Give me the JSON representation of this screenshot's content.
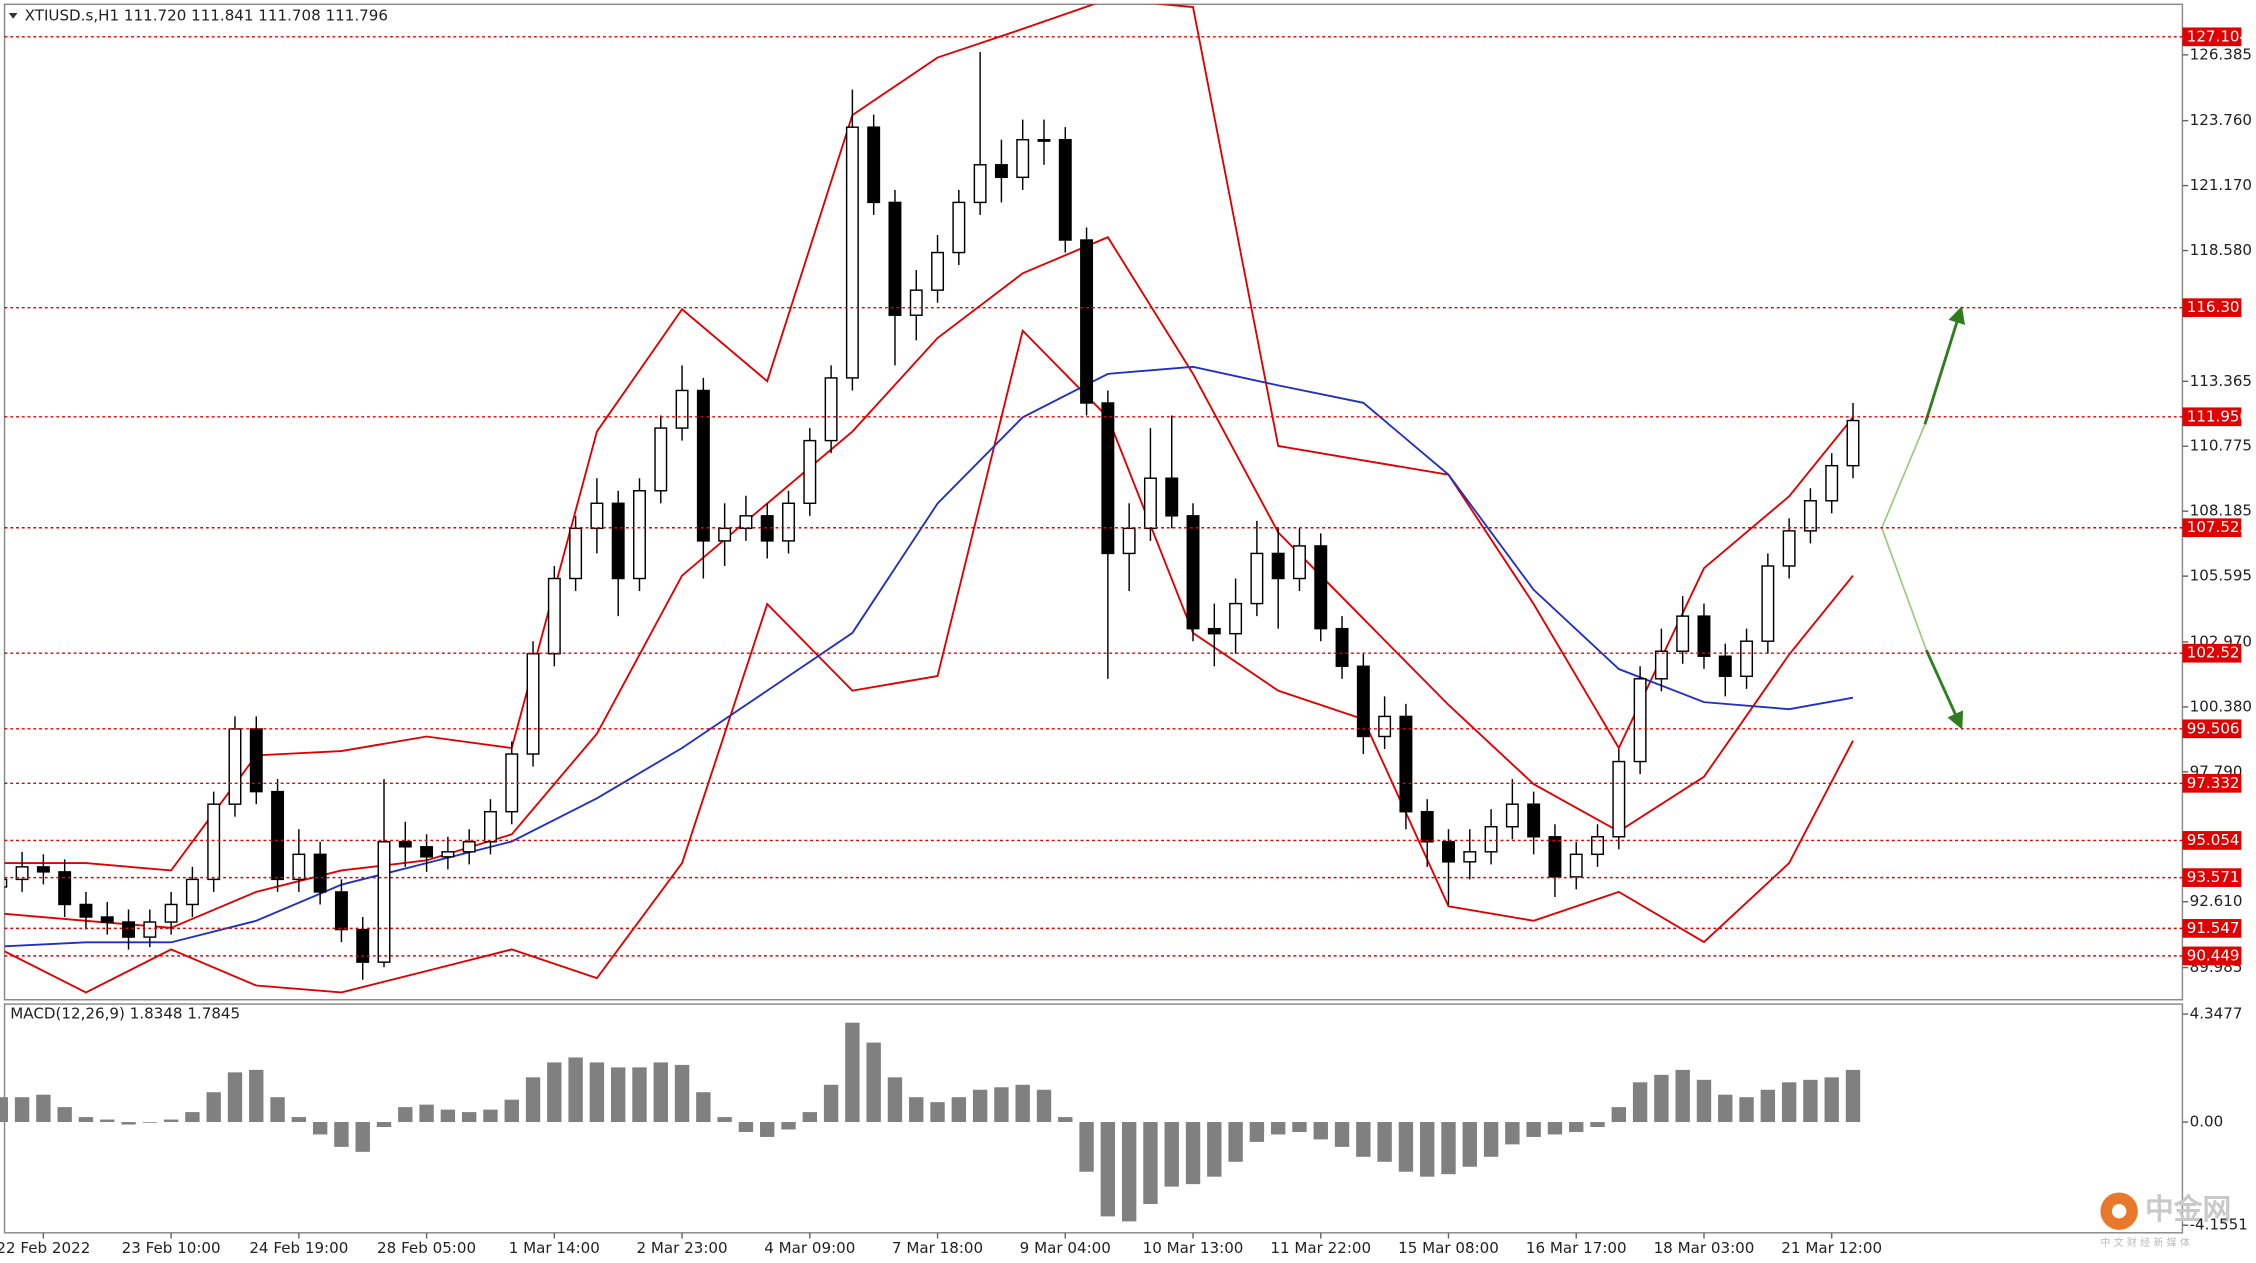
{
  "chart_data": [
    {
      "type": "candlestick",
      "title": "XTIUSD.s,H1  111.720 111.841 111.708 111.796",
      "categories": [
        null,
        null,
        "22 Feb 2022",
        null,
        null,
        null,
        null,
        null,
        "23 Feb 10:00",
        null,
        null,
        null,
        null,
        null,
        "24 Feb 19:00",
        null,
        null,
        null,
        null,
        null,
        "28 Feb 05:00",
        null,
        null,
        null,
        null,
        null,
        "1 Mar 14:00",
        null,
        null,
        null,
        null,
        null,
        "2 Mar 23:00",
        null,
        null,
        null,
        null,
        null,
        "4 Mar 09:00",
        null,
        null,
        null,
        null,
        null,
        "7 Mar 18:00",
        null,
        null,
        null,
        null,
        null,
        "9 Mar 04:00",
        null,
        null,
        null,
        null,
        null,
        "10 Mar 13:00",
        null,
        null,
        null,
        null,
        null,
        "11 Mar 22:00",
        null,
        null,
        null,
        null,
        null,
        "15 Mar 08:00",
        null,
        null,
        null,
        null,
        null,
        "16 Mar 17:00",
        null,
        null,
        null,
        null,
        null,
        "18 Mar 03:00",
        null,
        null,
        null,
        null,
        null,
        "21 Mar 12:00",
        null
      ],
      "ohlc": [
        [
          93.2,
          94.0,
          92.7,
          93.5
        ],
        [
          93.5,
          94.6,
          93.0,
          94.0
        ],
        [
          94.0,
          94.5,
          93.3,
          93.8
        ],
        [
          93.8,
          94.3,
          92.0,
          92.5
        ],
        [
          92.5,
          93.0,
          91.5,
          92.0
        ],
        [
          92.0,
          92.6,
          91.3,
          91.8
        ],
        [
          91.8,
          92.3,
          90.7,
          91.2
        ],
        [
          91.2,
          92.3,
          90.8,
          91.8
        ],
        [
          91.8,
          93.0,
          91.3,
          92.5
        ],
        [
          92.5,
          94.0,
          92.0,
          93.5
        ],
        [
          93.5,
          97.0,
          93.0,
          96.5
        ],
        [
          96.5,
          100.0,
          96.0,
          99.5
        ],
        [
          99.5,
          100.0,
          96.5,
          97.0
        ],
        [
          97.0,
          97.5,
          93.0,
          93.5
        ],
        [
          93.5,
          95.5,
          93.0,
          94.5
        ],
        [
          94.5,
          95.0,
          92.5,
          93.0
        ],
        [
          93.0,
          93.5,
          91.0,
          91.5
        ],
        [
          91.5,
          92.0,
          89.5,
          90.2
        ],
        [
          90.2,
          97.5,
          90.0,
          95.0
        ],
        [
          95.0,
          95.8,
          94.0,
          94.8
        ],
        [
          94.8,
          95.3,
          93.8,
          94.4
        ],
        [
          94.4,
          95.2,
          93.9,
          94.6
        ],
        [
          94.6,
          95.5,
          94.1,
          95.0
        ],
        [
          95.0,
          96.7,
          94.5,
          96.2
        ],
        [
          96.2,
          99.0,
          95.7,
          98.5
        ],
        [
          98.5,
          103.0,
          98.0,
          102.5
        ],
        [
          102.5,
          106.0,
          102.0,
          105.5
        ],
        [
          105.5,
          108.0,
          105.0,
          107.5
        ],
        [
          107.5,
          109.5,
          106.5,
          108.5
        ],
        [
          108.5,
          109.0,
          104.0,
          105.5
        ],
        [
          105.5,
          109.5,
          105.0,
          109.0
        ],
        [
          109.0,
          112.0,
          108.5,
          111.5
        ],
        [
          111.5,
          114.0,
          111.0,
          113.0
        ],
        [
          113.0,
          113.5,
          105.5,
          107.0
        ],
        [
          107.0,
          108.5,
          106.0,
          107.5
        ],
        [
          107.5,
          108.8,
          107.0,
          108.0
        ],
        [
          108.0,
          108.5,
          106.3,
          107.0
        ],
        [
          107.0,
          109.0,
          106.5,
          108.5
        ],
        [
          108.5,
          111.5,
          108.0,
          111.0
        ],
        [
          111.0,
          114.0,
          110.5,
          113.5
        ],
        [
          113.5,
          125.0,
          113.0,
          123.5
        ],
        [
          123.5,
          124.0,
          120.0,
          120.5
        ],
        [
          120.5,
          121.0,
          114.0,
          116.0
        ],
        [
          116.0,
          117.8,
          115.0,
          117.0
        ],
        [
          117.0,
          119.2,
          116.5,
          118.5
        ],
        [
          118.5,
          121.0,
          118.0,
          120.5
        ],
        [
          120.5,
          126.5,
          120.0,
          122.0
        ],
        [
          122.0,
          123.0,
          120.5,
          121.5
        ],
        [
          121.5,
          123.8,
          121.0,
          123.0
        ],
        [
          123.0,
          123.8,
          122.0,
          123.0
        ],
        [
          123.0,
          123.5,
          118.5,
          119.0
        ],
        [
          119.0,
          119.5,
          112.0,
          112.5
        ],
        [
          112.5,
          113.0,
          101.5,
          106.5
        ],
        [
          106.5,
          108.5,
          105.0,
          107.5
        ],
        [
          107.5,
          111.5,
          107.0,
          109.5
        ],
        [
          109.5,
          112.0,
          107.5,
          108.0
        ],
        [
          108.0,
          108.5,
          103.0,
          103.5
        ],
        [
          103.5,
          104.5,
          102.0,
          103.3
        ],
        [
          103.3,
          105.5,
          102.5,
          104.5
        ],
        [
          104.5,
          107.8,
          104.0,
          106.5
        ],
        [
          106.5,
          107.5,
          103.5,
          105.5
        ],
        [
          105.5,
          107.5,
          105.0,
          106.8
        ],
        [
          106.8,
          107.3,
          103.0,
          103.5
        ],
        [
          103.5,
          104.0,
          101.5,
          102.0
        ],
        [
          102.0,
          102.5,
          98.5,
          99.2
        ],
        [
          99.2,
          100.8,
          98.7,
          100.0
        ],
        [
          100.0,
          100.5,
          95.5,
          96.2
        ],
        [
          96.2,
          96.7,
          94.0,
          95.0
        ],
        [
          95.0,
          95.5,
          92.5,
          94.2
        ],
        [
          94.2,
          95.5,
          93.5,
          94.6
        ],
        [
          94.6,
          96.3,
          94.1,
          95.6
        ],
        [
          95.6,
          97.5,
          95.1,
          96.5
        ],
        [
          96.5,
          97.0,
          94.5,
          95.2
        ],
        [
          95.2,
          95.7,
          92.8,
          93.6
        ],
        [
          93.6,
          95.0,
          93.1,
          94.5
        ],
        [
          94.5,
          95.7,
          94.0,
          95.2
        ],
        [
          95.2,
          98.7,
          94.7,
          98.2
        ],
        [
          98.2,
          102.0,
          97.7,
          101.5
        ],
        [
          101.5,
          103.5,
          101.0,
          102.6
        ],
        [
          102.6,
          104.8,
          102.1,
          104.0
        ],
        [
          104.0,
          104.5,
          101.9,
          102.4
        ],
        [
          102.4,
          102.9,
          100.8,
          101.6
        ],
        [
          101.6,
          103.5,
          101.1,
          103.0
        ],
        [
          103.0,
          106.5,
          102.5,
          106.0
        ],
        [
          106.0,
          107.9,
          105.5,
          107.4
        ],
        [
          107.4,
          109.1,
          106.9,
          108.6
        ],
        [
          108.6,
          110.5,
          108.1,
          110.0
        ],
        [
          110.0,
          112.5,
          109.5,
          111.8
        ]
      ],
      "color_up": "#ffffff",
      "color_down": "#000000",
      "x": [
        0,
        4,
        8,
        12,
        16,
        20,
        24,
        28,
        32,
        36,
        40,
        44,
        48,
        52,
        56,
        60,
        64,
        68,
        72,
        76,
        80,
        84,
        87
      ],
      "series": [
        {
          "color": "#e00000",
          "values": [
            94.15,
            94.15,
            93.86,
            98.45,
            98.62,
            99.2,
            98.74,
            111.36,
            116.24,
            113.37,
            123.98,
            126.28,
            127.42,
            128.6,
            128.29,
            110.79,
            110.21,
            109.64,
            104.48,
            98.74,
            105.91,
            108.78,
            111.93
          ]
        },
        {
          "color": "#e00000",
          "values": [
            92.14,
            91.85,
            91.57,
            93.0,
            93.86,
            94.26,
            95.3,
            99.31,
            105.62,
            108.49,
            111.36,
            115.09,
            117.67,
            119.11,
            113.66,
            107.34,
            103.9,
            100.46,
            97.3,
            95.41,
            97.59,
            102.47,
            105.62
          ]
        },
        {
          "color": "#e00000",
          "values": [
            90.71,
            88.99,
            90.71,
            89.27,
            88.99,
            89.85,
            90.71,
            89.56,
            94.15,
            104.48,
            101.03,
            101.61,
            115.38,
            111.93,
            103.33,
            101.03,
            99.89,
            92.43,
            91.85,
            93.0,
            91.0,
            94.15,
            99.03
          ]
        },
        {
          "color": "#2030c0",
          "values": [
            90.82,
            90.99,
            90.99,
            91.85,
            93.29,
            94.15,
            95.01,
            96.73,
            98.74,
            101.03,
            103.33,
            108.49,
            111.93,
            113.66,
            113.94,
            113.2,
            112.51,
            109.64,
            105.05,
            101.89,
            100.57,
            100.29,
            100.75
          ]
        }
      ],
      "ylim": [
        88.7,
        128.4
      ],
      "yticks": [
        126.385,
        {
          "value": 123.76,
          "label": "123.760"
        },
        {
          "value": 121.17,
          "label": "121.170"
        },
        {
          "value": 118.58,
          "label": "118.580"
        },
        113.365,
        110.775,
        108.185,
        105.595,
        {
          "value": 102.97,
          "label": "102.970"
        },
        {
          "value": 100.38,
          "label": "100.380"
        },
        {
          "value": 97.79,
          "label": "97.790"
        },
        {
          "value": 92.61,
          "label": "92.610"
        },
        89.985
      ],
      "levels": [
        127.104,
        116.301,
        {
          "value": 111.95,
          "label": "111.950"
        },
        107.525,
        102.521,
        99.506,
        97.332,
        95.054,
        93.571,
        91.547,
        90.449
      ],
      "level_color": "#e00000"
    },
    {
      "type": "bar",
      "title": "MACD(12,26,9) 1.8348 1.7845",
      "values": [
        1.0,
        1.0,
        1.1,
        0.6,
        0.2,
        0.1,
        -0.1,
        0,
        0.1,
        0.4,
        1.2,
        2.0,
        2.1,
        1.0,
        0.2,
        -0.5,
        -1.0,
        -1.2,
        -0.2,
        0.6,
        0.7,
        0.5,
        0.4,
        0.5,
        0.9,
        1.8,
        2.4,
        2.6,
        2.4,
        2.2,
        2.2,
        2.4,
        2.3,
        1.2,
        0.2,
        -0.4,
        -0.6,
        -0.3,
        0.4,
        1.5,
        4.0,
        3.2,
        1.8,
        1.0,
        0.8,
        1.0,
        1.3,
        1.4,
        1.5,
        1.3,
        0.2,
        -2.0,
        -3.8,
        -4.0,
        -3.3,
        -2.6,
        -2.5,
        -2.2,
        -1.6,
        -0.8,
        -0.5,
        -0.4,
        -0.7,
        -1.0,
        -1.4,
        -1.6,
        -2.0,
        -2.2,
        -2.1,
        -1.8,
        -1.4,
        -0.9,
        -0.6,
        -0.5,
        -0.4,
        -0.2,
        0.6,
        1.6,
        1.9,
        2.1,
        1.7,
        1.1,
        1.0,
        1.3,
        1.6,
        1.7,
        1.8,
        2.1
      ],
      "color": "#808080",
      "ylim": [
        -4.46,
        4.75
      ],
      "yticks": [
        4.3477,
        {
          "value": 0,
          "label": "0.00"
        },
        -4.1551
      ]
    }
  ],
  "watermark": "中金网",
  "watermark_sub": "中 文 财 经 新 媒 体"
}
